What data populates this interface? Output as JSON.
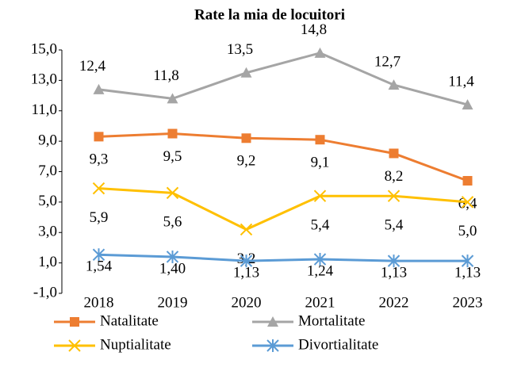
{
  "chart_data": {
    "type": "line",
    "title": "Rate la mia de locuitori",
    "categories": [
      "2018",
      "2019",
      "2020",
      "2021",
      "2022",
      "2023"
    ],
    "ylim": [
      -1,
      15
    ],
    "yticks": [
      {
        "value": -1,
        "label": "-1,0"
      },
      {
        "value": 1,
        "label": "1,0"
      },
      {
        "value": 3,
        "label": "3,0"
      },
      {
        "value": 5,
        "label": "5,0"
      },
      {
        "value": 7,
        "label": "7,0"
      },
      {
        "value": 9,
        "label": "9,0"
      },
      {
        "value": 11,
        "label": "11,0"
      },
      {
        "value": 13,
        "label": "13,0"
      },
      {
        "value": 15,
        "label": "15,0"
      }
    ],
    "grid": false,
    "legend": "bottom",
    "series": [
      {
        "name": "Natalitate",
        "color": "#ED7D31",
        "marker": "square",
        "values": [
          9.3,
          9.5,
          9.2,
          9.1,
          8.2,
          6.4
        ],
        "value_labels": [
          "9,3",
          "9,5",
          "9,2",
          "9,1",
          "8,2",
          "6,4"
        ]
      },
      {
        "name": "Mortalitate",
        "color": "#A5A5A5",
        "marker": "triangle",
        "values": [
          12.4,
          11.8,
          13.5,
          14.8,
          12.7,
          11.4
        ],
        "value_labels": [
          "12,4",
          "11,8",
          "13,5",
          "14,8",
          "12,7",
          "11,4"
        ]
      },
      {
        "name": "Nuptialitate",
        "color": "#FFC000",
        "marker": "x",
        "values": [
          5.9,
          5.6,
          3.2,
          5.4,
          5.4,
          5.0
        ],
        "value_labels": [
          "5,9",
          "5,6",
          "3,2",
          "5,4",
          "5,4",
          "5,0"
        ]
      },
      {
        "name": "Divortialitate",
        "color": "#5B9BD5",
        "marker": "star",
        "values": [
          1.54,
          1.4,
          1.13,
          1.24,
          1.13,
          1.13
        ],
        "value_labels": [
          "1,54",
          "1,40",
          "1,13",
          "1,24",
          "1,13",
          "1,13"
        ]
      }
    ]
  }
}
